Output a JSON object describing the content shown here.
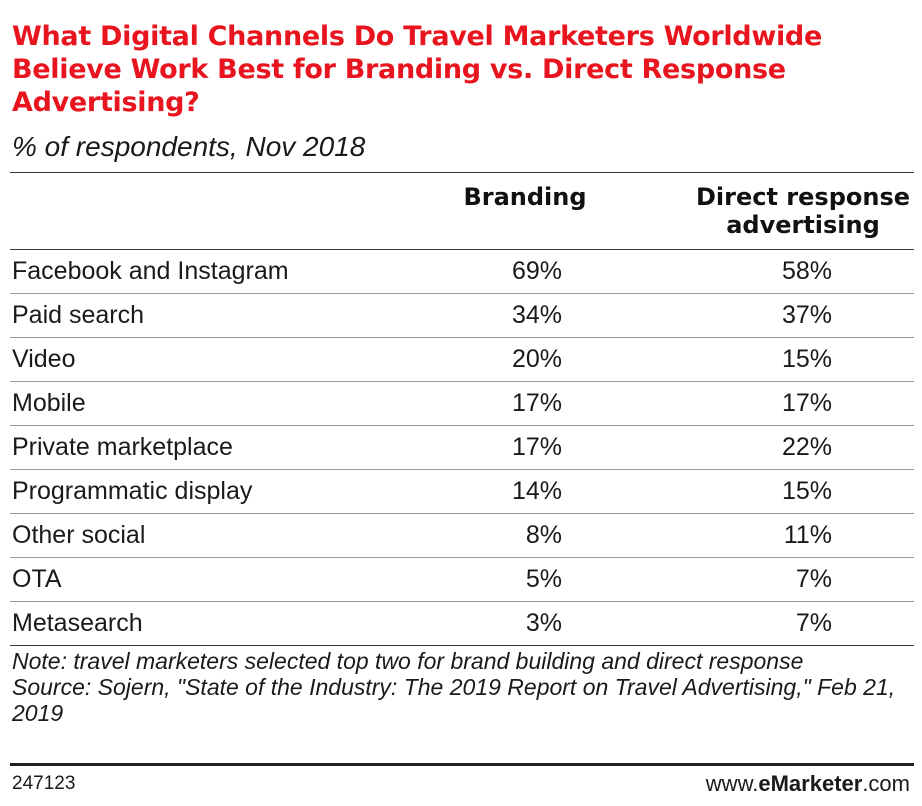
{
  "chart_data": {
    "type": "table",
    "title": "What Digital Channels Do Travel Marketers Worldwide Believe Work Best for Branding vs. Direct Response Advertising?",
    "subtitle": "% of respondents, Nov 2018",
    "columns": [
      "Branding",
      "Direct response advertising"
    ],
    "rows": [
      {
        "label": "Facebook and Instagram",
        "branding": "69%",
        "direct": "58%"
      },
      {
        "label": "Paid search",
        "branding": "34%",
        "direct": "37%"
      },
      {
        "label": "Video",
        "branding": "20%",
        "direct": "15%"
      },
      {
        "label": "Mobile",
        "branding": "17%",
        "direct": "17%"
      },
      {
        "label": "Private marketplace",
        "branding": "17%",
        "direct": "22%"
      },
      {
        "label": "Programmatic display",
        "branding": "14%",
        "direct": "15%"
      },
      {
        "label": "Other social",
        "branding": "8%",
        "direct": "11%"
      },
      {
        "label": "OTA",
        "branding": "5%",
        "direct": "7%"
      },
      {
        "label": "Metasearch",
        "branding": "3%",
        "direct": "7%"
      }
    ],
    "series": [
      {
        "name": "Branding",
        "values": [
          69,
          34,
          20,
          17,
          17,
          14,
          8,
          5,
          3
        ]
      },
      {
        "name": "Direct response advertising",
        "values": [
          58,
          37,
          15,
          17,
          22,
          15,
          11,
          7,
          7
        ]
      }
    ]
  },
  "header": {
    "col_branding": "Branding",
    "col_direct_line1": "Direct response",
    "col_direct_line2": "advertising"
  },
  "note": "Note: travel marketers selected top two for brand building and direct response",
  "source": "Source: Sojern, \"State of the Industry: The 2019 Report on Travel Advertising,\" Feb 21, 2019",
  "footer": {
    "chart_id": "247123",
    "site_prefix": "www.",
    "site_brand": "eMarketer",
    "site_suffix": ".com"
  },
  "colors": {
    "title": "#e8141e"
  }
}
